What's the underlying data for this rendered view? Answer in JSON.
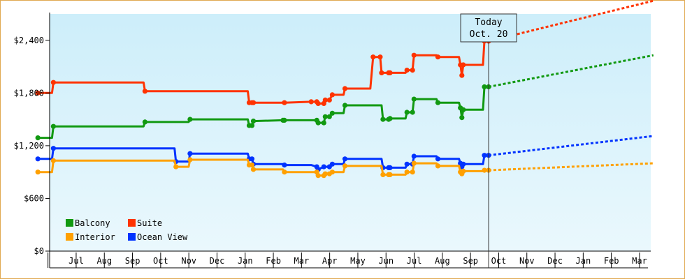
{
  "chart_data": {
    "type": "line",
    "title": "",
    "xlabel": "",
    "ylabel": "",
    "ylim": [
      0,
      2700
    ],
    "y_ticks": [
      "$0",
      "$600",
      "$1,200",
      "$1,800",
      "$2,400"
    ],
    "y_tick_values": [
      0,
      600,
      1200,
      1800,
      2400
    ],
    "months": [
      "Jul",
      "Aug",
      "Sep",
      "Oct",
      "Nov",
      "Dec",
      "Jan",
      "Feb",
      "Mar",
      "Apr",
      "May",
      "Jun",
      "Jul",
      "Aug",
      "Sep",
      "Oct",
      "Nov",
      "Dec",
      "Jan",
      "Feb",
      "Mar"
    ],
    "month_start_index": 0,
    "x_axis_unit": "month",
    "x_start": -0.85,
    "x_end": 21,
    "grid": false,
    "legend_position": "bottom-left",
    "today": {
      "label_line1": "Today",
      "label_line2": "Oct. 20",
      "x": 15.15
    },
    "colors": {
      "Balcony": "#119911",
      "Suite": "#ff3300",
      "Interior": "#ffa000",
      "Ocean View": "#0033ff",
      "plot_bg_top": "#cdeefa",
      "plot_bg_bottom": "#eaf8fd"
    },
    "series": [
      {
        "name": "Suite",
        "points": [
          [
            -0.85,
            1800
          ],
          [
            -0.35,
            1800
          ],
          [
            -0.3,
            1920
          ],
          [
            2.9,
            1920
          ],
          [
            2.95,
            1820
          ],
          [
            6.6,
            1820
          ],
          [
            6.65,
            1690
          ],
          [
            6.75,
            1690
          ],
          [
            6.8,
            1690
          ],
          [
            7.85,
            1690
          ],
          [
            7.9,
            1690
          ],
          [
            8.85,
            1700
          ],
          [
            9.05,
            1700
          ],
          [
            9.1,
            1680
          ],
          [
            9.3,
            1680
          ],
          [
            9.35,
            1720
          ],
          [
            9.5,
            1720
          ],
          [
            9.6,
            1780
          ],
          [
            10.0,
            1780
          ],
          [
            10.05,
            1850
          ],
          [
            10.95,
            1850
          ],
          [
            11.05,
            2210
          ],
          [
            11.3,
            2210
          ],
          [
            11.35,
            2030
          ],
          [
            11.6,
            2030
          ],
          [
            11.65,
            2030
          ],
          [
            12.2,
            2030
          ],
          [
            12.25,
            2060
          ],
          [
            12.45,
            2060
          ],
          [
            12.5,
            2230
          ],
          [
            13.3,
            2230
          ],
          [
            13.35,
            2210
          ],
          [
            14.1,
            2210
          ],
          [
            14.15,
            2120
          ],
          [
            14.2,
            2000
          ],
          [
            14.25,
            2120
          ],
          [
            14.95,
            2120
          ],
          [
            15.0,
            2390
          ],
          [
            15.15,
            2390
          ]
        ],
        "forecast": [
          [
            15.15,
            2390
          ],
          [
            21,
            2850
          ]
        ]
      },
      {
        "name": "Balcony",
        "points": [
          [
            -0.85,
            1290
          ],
          [
            -0.35,
            1290
          ],
          [
            -0.3,
            1420
          ],
          [
            2.9,
            1420
          ],
          [
            2.95,
            1470
          ],
          [
            4.5,
            1470
          ],
          [
            4.55,
            1500
          ],
          [
            6.6,
            1500
          ],
          [
            6.65,
            1430
          ],
          [
            6.75,
            1430
          ],
          [
            6.8,
            1480
          ],
          [
            7.85,
            1490
          ],
          [
            7.9,
            1490
          ],
          [
            8.85,
            1490
          ],
          [
            9.05,
            1490
          ],
          [
            9.1,
            1460
          ],
          [
            9.3,
            1460
          ],
          [
            9.35,
            1530
          ],
          [
            9.5,
            1530
          ],
          [
            9.6,
            1570
          ],
          [
            10.0,
            1570
          ],
          [
            10.05,
            1660
          ],
          [
            11.35,
            1660
          ],
          [
            11.4,
            1500
          ],
          [
            11.6,
            1500
          ],
          [
            11.65,
            1510
          ],
          [
            12.2,
            1510
          ],
          [
            12.25,
            1580
          ],
          [
            12.45,
            1580
          ],
          [
            12.5,
            1730
          ],
          [
            13.3,
            1730
          ],
          [
            13.35,
            1690
          ],
          [
            14.1,
            1690
          ],
          [
            14.15,
            1630
          ],
          [
            14.2,
            1520
          ],
          [
            14.25,
            1610
          ],
          [
            14.95,
            1610
          ],
          [
            15.0,
            1870
          ],
          [
            15.15,
            1870
          ]
        ],
        "forecast": [
          [
            15.15,
            1870
          ],
          [
            21,
            2230
          ]
        ]
      },
      {
        "name": "Ocean View",
        "points": [
          [
            -0.85,
            1050
          ],
          [
            -0.35,
            1050
          ],
          [
            -0.3,
            1170
          ],
          [
            4.0,
            1170
          ],
          [
            4.05,
            1020
          ],
          [
            4.5,
            1020
          ],
          [
            4.55,
            1110
          ],
          [
            6.6,
            1110
          ],
          [
            6.65,
            1050
          ],
          [
            6.75,
            1050
          ],
          [
            6.8,
            990
          ],
          [
            7.85,
            990
          ],
          [
            7.9,
            980
          ],
          [
            8.85,
            980
          ],
          [
            9.05,
            960
          ],
          [
            9.1,
            930
          ],
          [
            9.3,
            960
          ],
          [
            9.5,
            960
          ],
          [
            9.6,
            990
          ],
          [
            10.0,
            990
          ],
          [
            10.05,
            1050
          ],
          [
            11.35,
            1050
          ],
          [
            11.4,
            950
          ],
          [
            11.6,
            950
          ],
          [
            11.65,
            950
          ],
          [
            12.2,
            950
          ],
          [
            12.25,
            990
          ],
          [
            12.45,
            990
          ],
          [
            12.5,
            1080
          ],
          [
            13.3,
            1080
          ],
          [
            13.35,
            1050
          ],
          [
            14.1,
            1050
          ],
          [
            14.15,
            1000
          ],
          [
            14.2,
            960
          ],
          [
            14.25,
            990
          ],
          [
            14.95,
            990
          ],
          [
            15.0,
            1090
          ],
          [
            15.15,
            1090
          ]
        ],
        "forecast": [
          [
            15.15,
            1090
          ],
          [
            21,
            1310
          ]
        ]
      },
      {
        "name": "Interior",
        "points": [
          [
            -0.85,
            900
          ],
          [
            -0.35,
            900
          ],
          [
            -0.3,
            1030
          ],
          [
            4.0,
            1030
          ],
          [
            4.05,
            960
          ],
          [
            4.5,
            960
          ],
          [
            4.55,
            1040
          ],
          [
            6.6,
            1040
          ],
          [
            6.65,
            980
          ],
          [
            6.75,
            980
          ],
          [
            6.8,
            930
          ],
          [
            7.85,
            930
          ],
          [
            7.9,
            900
          ],
          [
            8.85,
            900
          ],
          [
            9.05,
            900
          ],
          [
            9.1,
            860
          ],
          [
            9.3,
            860
          ],
          [
            9.35,
            880
          ],
          [
            9.5,
            880
          ],
          [
            9.6,
            900
          ],
          [
            10.0,
            900
          ],
          [
            10.05,
            970
          ],
          [
            11.35,
            970
          ],
          [
            11.4,
            870
          ],
          [
            11.6,
            870
          ],
          [
            11.65,
            870
          ],
          [
            12.2,
            870
          ],
          [
            12.25,
            900
          ],
          [
            12.45,
            900
          ],
          [
            12.5,
            1000
          ],
          [
            13.3,
            1000
          ],
          [
            13.35,
            970
          ],
          [
            14.1,
            970
          ],
          [
            14.15,
            900
          ],
          [
            14.2,
            880
          ],
          [
            14.25,
            910
          ],
          [
            14.95,
            910
          ],
          [
            15.0,
            920
          ],
          [
            15.15,
            920
          ]
        ],
        "forecast": [
          [
            15.15,
            920
          ],
          [
            21,
            1000
          ]
        ]
      }
    ],
    "legend": [
      {
        "label": "Balcony",
        "color": "#119911"
      },
      {
        "label": "Suite",
        "color": "#ff3300"
      },
      {
        "label": "Interior",
        "color": "#ffa000"
      },
      {
        "label": "Ocean View",
        "color": "#0033ff"
      }
    ]
  }
}
